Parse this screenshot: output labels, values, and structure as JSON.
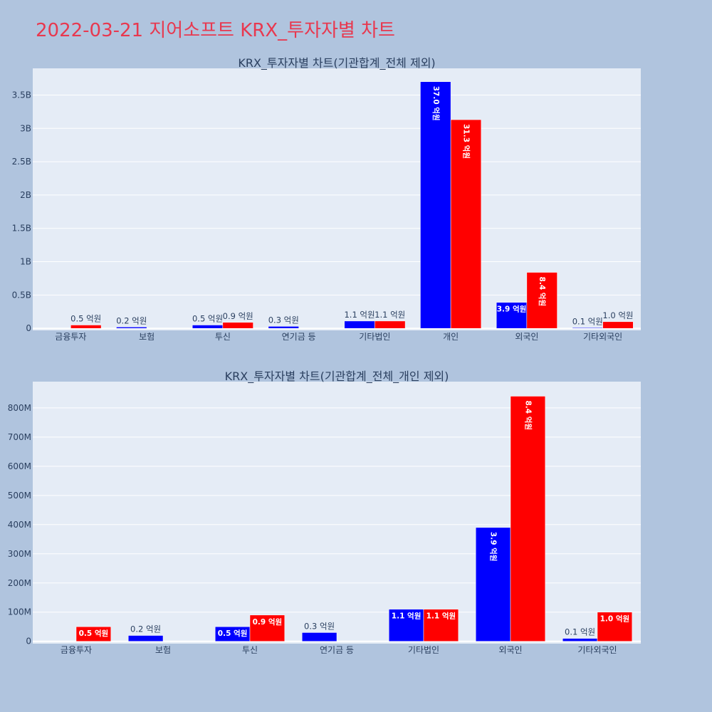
{
  "page": {
    "title": "2022-03-21 지어소프트 KRX_투자자별 차트"
  },
  "colors": {
    "series1": "#0000ff",
    "series2": "#ff0000",
    "plot_bg": "#e5ecf6",
    "page_bg": "#b0c4de",
    "title": "#e8384f"
  },
  "chart_data": [
    {
      "type": "bar",
      "title": "KRX_투자자별 차트(기관합계_전체 제외)",
      "categories": [
        "금융투자",
        "보험",
        "투신",
        "연기금 등",
        "기타법인",
        "개인",
        "외국인",
        "기타외국인"
      ],
      "series": [
        {
          "values": [
            0,
            20000000,
            50000000,
            30000000,
            110000000,
            3700000000,
            390000000,
            10000000
          ],
          "labels": [
            "",
            "0.2 억원",
            "0.5 억원",
            "0.3 억원",
            "1.1 억원",
            "37.0 억원",
            "3.9 억원",
            "0.1 억원"
          ]
        },
        {
          "values": [
            50000000,
            0,
            90000000,
            0,
            110000000,
            3130000000,
            840000000,
            100000000
          ],
          "labels": [
            "0.5 억원",
            "",
            "0.9 억원",
            "",
            "1.1 억원",
            "31.3 억원",
            "8.4 억원",
            "1.0 억원"
          ]
        }
      ],
      "ylim": [
        -30000000,
        3900000000
      ],
      "yticks": [
        0,
        500000000,
        1000000000,
        1500000000,
        2000000000,
        2500000000,
        3000000000,
        3500000000
      ],
      "ytick_labels": [
        "0",
        "0.5B",
        "1B",
        "1.5B",
        "2B",
        "2.5B",
        "3B",
        "3.5B"
      ],
      "xlabel": "",
      "ylabel": "",
      "grid": true,
      "legend": false
    },
    {
      "type": "bar",
      "title": "KRX_투자자별 차트(기관합계_전체_개인 제외)",
      "categories": [
        "금융투자",
        "보험",
        "투신",
        "연기금 등",
        "기타법인",
        "외국인",
        "기타외국인"
      ],
      "series": [
        {
          "values": [
            0,
            20000000,
            50000000,
            30000000,
            110000000,
            390000000,
            10000000
          ],
          "labels": [
            "",
            "0.2 억원",
            "0.5 억원",
            "0.3 억원",
            "1.1 억원",
            "3.9 억원",
            "0.1 억원"
          ]
        },
        {
          "values": [
            50000000,
            0,
            90000000,
            0,
            110000000,
            840000000,
            100000000
          ],
          "labels": [
            "0.5 억원",
            "",
            "0.9 억원",
            "",
            "1.1 억원",
            "8.4 억원",
            "1.0 억원"
          ]
        }
      ],
      "ylim": [
        -8000000,
        890000000
      ],
      "yticks": [
        0,
        100000000,
        200000000,
        300000000,
        400000000,
        500000000,
        600000000,
        700000000,
        800000000
      ],
      "ytick_labels": [
        "0",
        "100M",
        "200M",
        "300M",
        "400M",
        "500M",
        "600M",
        "700M",
        "800M"
      ],
      "xlabel": "",
      "ylabel": "",
      "grid": true,
      "legend": false
    }
  ]
}
